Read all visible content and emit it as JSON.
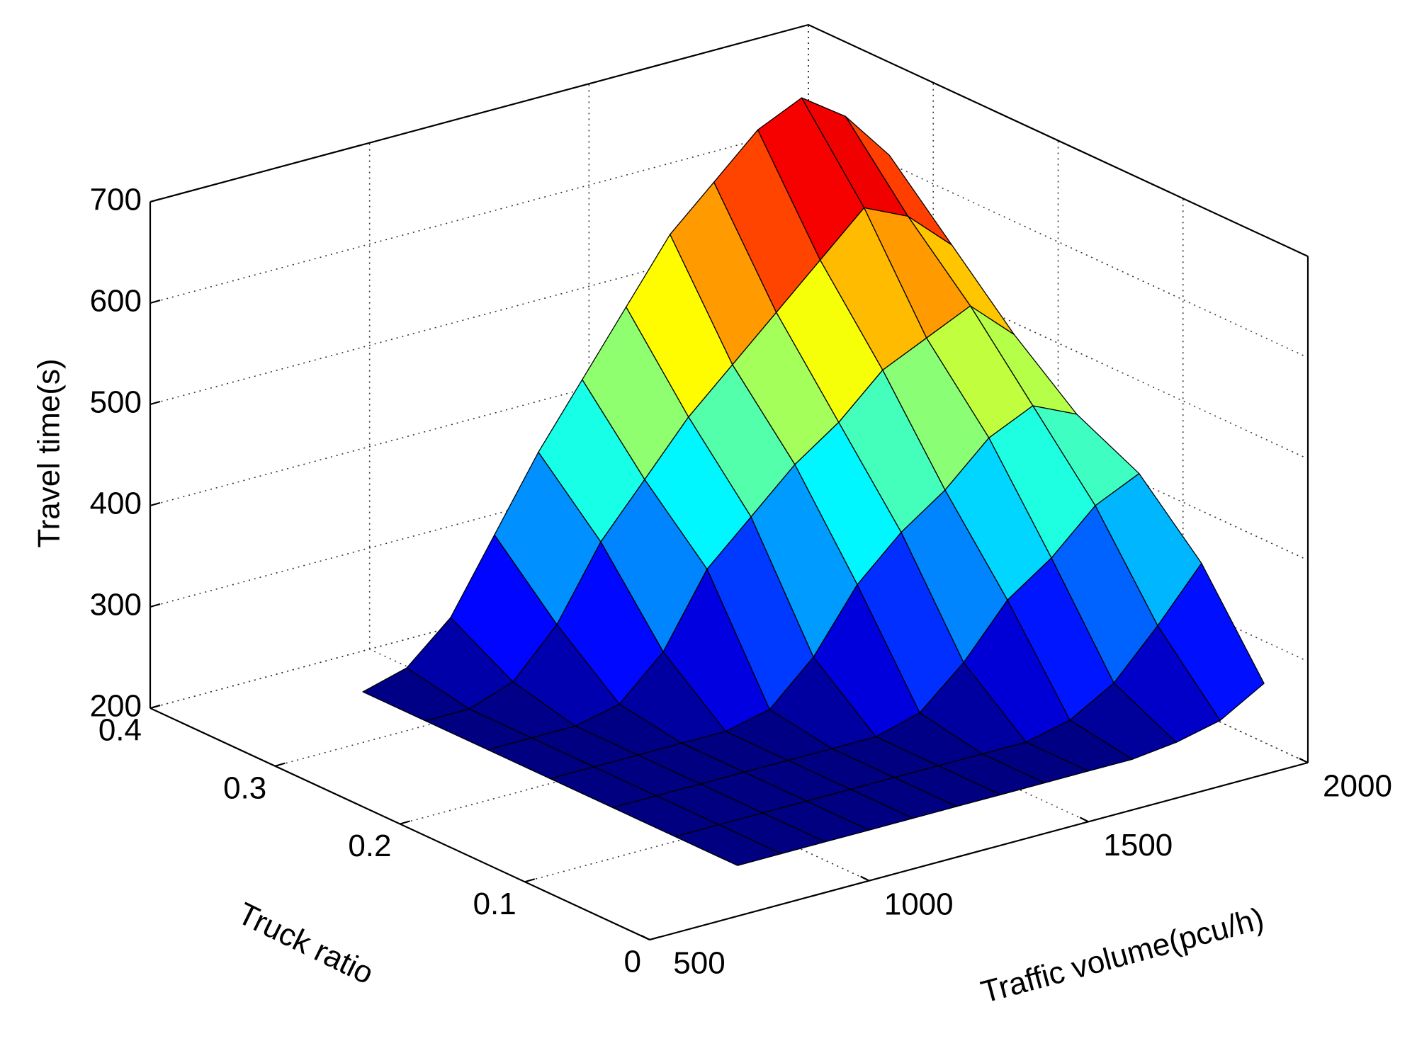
{
  "chart_data": {
    "type": "surface",
    "xlabel": "Traffic volume(pcu/h)",
    "ylabel": "Truck ratio",
    "zlabel": "Travel time(s)",
    "x": [
      700,
      800,
      900,
      1000,
      1100,
      1200,
      1300,
      1400,
      1500,
      1600,
      1700,
      1800,
      1900
    ],
    "y": [
      0,
      0.05,
      0.1,
      0.15,
      0.2,
      0.25,
      0.3
    ],
    "values": [
      [
        250,
        250,
        250,
        250,
        250,
        250,
        250,
        250,
        250,
        250,
        255,
        265,
        290
      ],
      [
        250,
        250,
        250,
        250,
        250,
        250,
        250,
        250,
        250,
        260,
        285,
        330,
        380
      ],
      [
        250,
        250,
        250,
        250,
        250,
        250,
        250,
        262,
        300,
        350,
        380,
        420,
        440
      ],
      [
        250,
        250,
        250,
        250,
        250,
        260,
        300,
        360,
        400,
        430,
        470,
        490,
        470
      ],
      [
        250,
        250,
        250,
        260,
        300,
        370,
        410,
        450,
        480,
        520,
        540,
        560,
        520
      ],
      [
        250,
        250,
        265,
        310,
        380,
        430,
        480,
        520,
        560,
        600,
        640,
        620,
        580
      ],
      [
        250,
        262,
        300,
        370,
        440,
        500,
        560,
        620,
        660,
        700,
        720,
        690,
        640
      ]
    ],
    "colormap": "jet",
    "xlim": [
      500,
      2000
    ],
    "xticks": [
      500,
      1000,
      1500,
      2000
    ],
    "ylim": [
      0,
      0.4
    ],
    "yticks": [
      0,
      0.1,
      0.2,
      0.3,
      0.4
    ],
    "zlim": [
      200,
      700
    ],
    "zticks": [
      200,
      300,
      400,
      500,
      600,
      700
    ],
    "grid": true
  }
}
